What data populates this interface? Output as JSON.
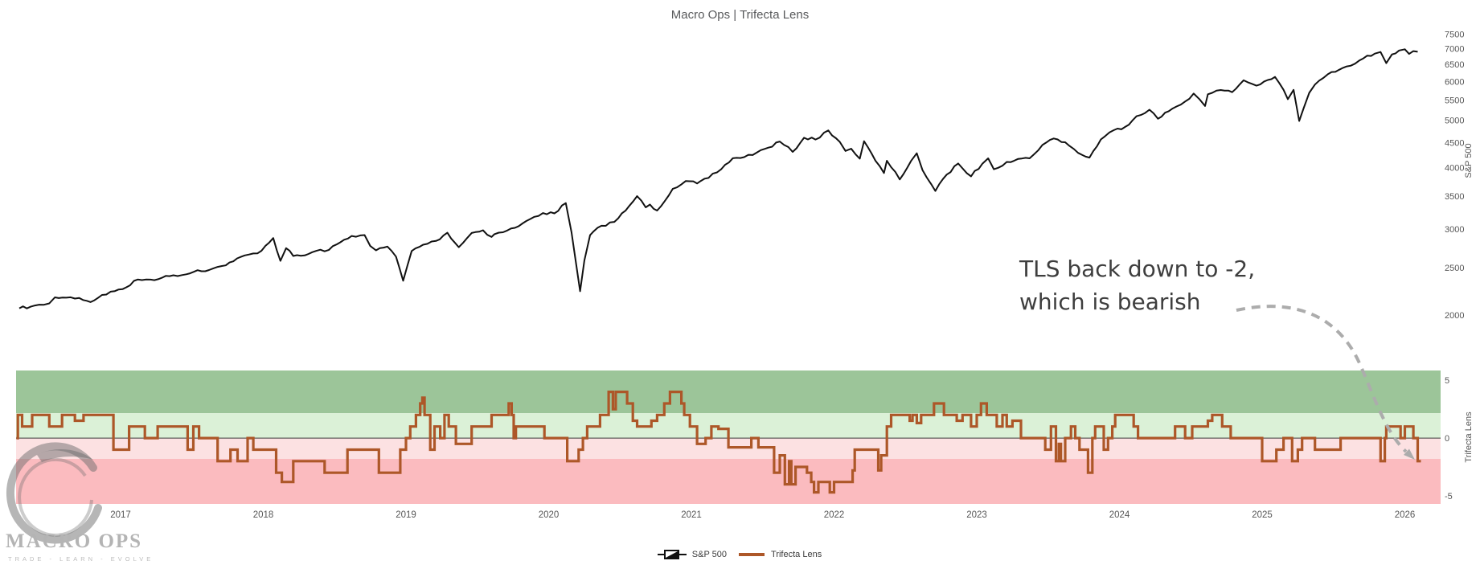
{
  "title": "Macro Ops | Trifecta Lens",
  "annotation": {
    "line1": "TLS back down to -2,",
    "line2": "which is bearish"
  },
  "legend": {
    "items": [
      {
        "label": "S&P 500"
      },
      {
        "label": "Trifecta Lens"
      }
    ]
  },
  "logo": {
    "name": "MACRO OPS",
    "tagline": "TRADE - LEARN - EVOLVE"
  },
  "colors": {
    "sp_line": "#111111",
    "tls_line": "#ad5728",
    "band_strong_bull": "#9cc599",
    "band_bull": "#dbf1d7",
    "band_bear": "#fce1e2",
    "band_strong_bear": "#fbbbbf",
    "zero_line": "#3a3a3a",
    "tick_text": "#565656",
    "arrow": "#acacac",
    "logo_gray": "#6e6e6e"
  },
  "x_axis": {
    "years": [
      2017,
      2018,
      2019,
      2020,
      2021,
      2022,
      2023,
      2024,
      2025,
      2026
    ],
    "range": [
      2016.27,
      2026.25
    ]
  },
  "chart_data": [
    {
      "type": "line",
      "name": "S&P 500",
      "ylabel": "S&P 500",
      "yscale": "log",
      "ylim": [
        1766,
        7916
      ],
      "yticks": [
        7500,
        7000,
        6500,
        6000,
        5500,
        5000,
        4500,
        4000,
        3500,
        3000,
        2500,
        2000
      ],
      "points": [
        [
          2016.29,
          2065
        ],
        [
          2016.37,
          2081
        ],
        [
          2016.46,
          2099
        ],
        [
          2016.5,
          2113
        ],
        [
          2016.54,
          2174
        ],
        [
          2016.62,
          2171
        ],
        [
          2016.71,
          2168
        ],
        [
          2016.79,
          2126
        ],
        [
          2016.87,
          2199
        ],
        [
          2016.96,
          2239
        ],
        [
          2017.04,
          2279
        ],
        [
          2017.12,
          2364
        ],
        [
          2017.21,
          2363
        ],
        [
          2017.29,
          2384
        ],
        [
          2017.37,
          2412
        ],
        [
          2017.46,
          2423
        ],
        [
          2017.54,
          2470
        ],
        [
          2017.62,
          2472
        ],
        [
          2017.71,
          2519
        ],
        [
          2017.79,
          2575
        ],
        [
          2017.87,
          2648
        ],
        [
          2017.96,
          2674
        ],
        [
          2018.07,
          2873
        ],
        [
          2018.12,
          2581
        ],
        [
          2018.16,
          2740
        ],
        [
          2018.21,
          2641
        ],
        [
          2018.29,
          2648
        ],
        [
          2018.37,
          2705
        ],
        [
          2018.46,
          2718
        ],
        [
          2018.54,
          2816
        ],
        [
          2018.62,
          2902
        ],
        [
          2018.71,
          2914
        ],
        [
          2018.75,
          2768
        ],
        [
          2018.79,
          2712
        ],
        [
          2018.87,
          2760
        ],
        [
          2018.93,
          2633
        ],
        [
          2018.98,
          2351
        ],
        [
          2019.04,
          2704
        ],
        [
          2019.12,
          2784
        ],
        [
          2019.21,
          2834
        ],
        [
          2019.29,
          2946
        ],
        [
          2019.37,
          2752
        ],
        [
          2019.46,
          2942
        ],
        [
          2019.54,
          2980
        ],
        [
          2019.6,
          2888
        ],
        [
          2019.62,
          2926
        ],
        [
          2019.71,
          2977
        ],
        [
          2019.79,
          3038
        ],
        [
          2019.87,
          3141
        ],
        [
          2019.96,
          3231
        ],
        [
          2020.04,
          3226
        ],
        [
          2020.12,
          3386
        ],
        [
          2020.16,
          2954
        ],
        [
          2020.22,
          2237
        ],
        [
          2020.25,
          2585
        ],
        [
          2020.29,
          2912
        ],
        [
          2020.37,
          3044
        ],
        [
          2020.46,
          3100
        ],
        [
          2020.54,
          3271
        ],
        [
          2020.62,
          3500
        ],
        [
          2020.68,
          3319
        ],
        [
          2020.71,
          3363
        ],
        [
          2020.76,
          3270
        ],
        [
          2020.87,
          3622
        ],
        [
          2020.96,
          3756
        ],
        [
          2021.04,
          3714
        ],
        [
          2021.12,
          3811
        ],
        [
          2021.21,
          3973
        ],
        [
          2021.29,
          4181
        ],
        [
          2021.37,
          4204
        ],
        [
          2021.46,
          4298
        ],
        [
          2021.54,
          4395
        ],
        [
          2021.62,
          4523
        ],
        [
          2021.71,
          4308
        ],
        [
          2021.79,
          4605
        ],
        [
          2021.87,
          4567
        ],
        [
          2021.96,
          4766
        ],
        [
          2022.04,
          4516
        ],
        [
          2022.08,
          4327
        ],
        [
          2022.12,
          4374
        ],
        [
          2022.18,
          4173
        ],
        [
          2022.21,
          4530
        ],
        [
          2022.29,
          4132
        ],
        [
          2022.35,
          3900
        ],
        [
          2022.37,
          4132
        ],
        [
          2022.46,
          3785
        ],
        [
          2022.54,
          4130
        ],
        [
          2022.58,
          4280
        ],
        [
          2022.62,
          3955
        ],
        [
          2022.71,
          3586
        ],
        [
          2022.79,
          3872
        ],
        [
          2022.87,
          4080
        ],
        [
          2022.96,
          3840
        ],
        [
          2023.04,
          4077
        ],
        [
          2023.08,
          4180
        ],
        [
          2023.12,
          3970
        ],
        [
          2023.21,
          4109
        ],
        [
          2023.29,
          4169
        ],
        [
          2023.37,
          4180
        ],
        [
          2023.46,
          4450
        ],
        [
          2023.54,
          4589
        ],
        [
          2023.62,
          4508
        ],
        [
          2023.71,
          4288
        ],
        [
          2023.79,
          4194
        ],
        [
          2023.87,
          4568
        ],
        [
          2023.96,
          4770
        ],
        [
          2024.04,
          4846
        ],
        [
          2024.12,
          5096
        ],
        [
          2024.21,
          5254
        ],
        [
          2024.27,
          5036
        ],
        [
          2024.37,
          5278
        ],
        [
          2024.46,
          5460
        ],
        [
          2024.52,
          5667
        ],
        [
          2024.56,
          5522
        ],
        [
          2024.6,
          5346
        ],
        [
          2024.62,
          5648
        ],
        [
          2024.71,
          5762
        ],
        [
          2024.79,
          5705
        ],
        [
          2024.87,
          6032
        ],
        [
          2024.96,
          5882
        ],
        [
          2025.04,
          6041
        ],
        [
          2025.09,
          6130
        ],
        [
          2025.12,
          5955
        ],
        [
          2025.18,
          5521
        ],
        [
          2025.22,
          5767
        ],
        [
          2025.26,
          4983
        ],
        [
          2025.29,
          5283
        ],
        [
          2025.33,
          5687
        ],
        [
          2025.37,
          5912
        ],
        [
          2025.46,
          6205
        ],
        [
          2025.54,
          6339
        ],
        [
          2025.62,
          6460
        ],
        [
          2025.71,
          6688
        ],
        [
          2025.79,
          6840
        ],
        [
          2025.83,
          6890
        ],
        [
          2025.87,
          6538
        ],
        [
          2025.91,
          6812
        ],
        [
          2025.96,
          6940
        ],
        [
          2026.0,
          6980
        ],
        [
          2026.03,
          6830
        ],
        [
          2026.06,
          6920
        ],
        [
          2026.09,
          6900
        ]
      ]
    },
    {
      "type": "step-line",
      "name": "Trifecta Lens",
      "ylabel": "Trifecta Lens",
      "ylim": [
        -5.7,
        5.85
      ],
      "yticks": [
        5,
        0,
        -5
      ],
      "bands": [
        {
          "from": 2.15,
          "to": 5.85,
          "label": "strong-bullish"
        },
        {
          "from": 0,
          "to": 2.15,
          "label": "bullish"
        },
        {
          "from": -1.8,
          "to": 0,
          "label": "bearish"
        },
        {
          "from": -5.7,
          "to": -1.8,
          "label": "strong-bearish"
        }
      ],
      "steps": [
        [
          2016.27,
          0
        ],
        [
          2016.28,
          2
        ],
        [
          2016.31,
          1
        ],
        [
          2016.38,
          2
        ],
        [
          2016.5,
          1
        ],
        [
          2016.59,
          2
        ],
        [
          2016.68,
          1.5
        ],
        [
          2016.74,
          2
        ],
        [
          2016.95,
          -1
        ],
        [
          2017.06,
          1
        ],
        [
          2017.17,
          0
        ],
        [
          2017.26,
          1
        ],
        [
          2017.47,
          -1
        ],
        [
          2017.51,
          1
        ],
        [
          2017.55,
          0
        ],
        [
          2017.68,
          -2
        ],
        [
          2017.77,
          -1
        ],
        [
          2017.82,
          -2
        ],
        [
          2017.89,
          0
        ],
        [
          2017.93,
          -1
        ],
        [
          2018.09,
          -3
        ],
        [
          2018.13,
          -3.8
        ],
        [
          2018.21,
          -2
        ],
        [
          2018.43,
          -3
        ],
        [
          2018.59,
          -1
        ],
        [
          2018.81,
          -3
        ],
        [
          2018.96,
          -1
        ],
        [
          2019.0,
          0
        ],
        [
          2019.03,
          1
        ],
        [
          2019.07,
          2
        ],
        [
          2019.1,
          3
        ],
        [
          2019.115,
          3.5
        ],
        [
          2019.13,
          2
        ],
        [
          2019.17,
          -1
        ],
        [
          2019.2,
          1
        ],
        [
          2019.24,
          0
        ],
        [
          2019.27,
          2
        ],
        [
          2019.3,
          1
        ],
        [
          2019.35,
          -0.5
        ],
        [
          2019.46,
          1
        ],
        [
          2019.6,
          2
        ],
        [
          2019.72,
          3
        ],
        [
          2019.74,
          2
        ],
        [
          2019.755,
          0
        ],
        [
          2019.77,
          1
        ],
        [
          2019.97,
          0
        ],
        [
          2020.13,
          -2
        ],
        [
          2020.21,
          -1
        ],
        [
          2020.24,
          0
        ],
        [
          2020.27,
          1
        ],
        [
          2020.36,
          2
        ],
        [
          2020.42,
          4
        ],
        [
          2020.45,
          2.5
        ],
        [
          2020.47,
          4
        ],
        [
          2020.55,
          3
        ],
        [
          2020.59,
          1.5
        ],
        [
          2020.62,
          1
        ],
        [
          2020.72,
          1.5
        ],
        [
          2020.76,
          2
        ],
        [
          2020.81,
          3
        ],
        [
          2020.85,
          4
        ],
        [
          2020.93,
          3
        ],
        [
          2020.95,
          2
        ],
        [
          2020.99,
          1
        ],
        [
          2021.04,
          -0.5
        ],
        [
          2021.1,
          0
        ],
        [
          2021.14,
          1
        ],
        [
          2021.19,
          0.8
        ],
        [
          2021.26,
          -0.8
        ],
        [
          2021.42,
          0
        ],
        [
          2021.47,
          -0.8
        ],
        [
          2021.58,
          -3
        ],
        [
          2021.62,
          -1.5
        ],
        [
          2021.655,
          -4
        ],
        [
          2021.685,
          -2
        ],
        [
          2021.7,
          -4
        ],
        [
          2021.73,
          -2.5
        ],
        [
          2021.81,
          -3
        ],
        [
          2021.84,
          -3.8
        ],
        [
          2021.86,
          -4.7
        ],
        [
          2021.89,
          -3.8
        ],
        [
          2021.97,
          -4.7
        ],
        [
          2022.0,
          -3.8
        ],
        [
          2022.13,
          -2.8
        ],
        [
          2022.145,
          -1
        ],
        [
          2022.31,
          -2.8
        ],
        [
          2022.33,
          -1.5
        ],
        [
          2022.37,
          1
        ],
        [
          2022.4,
          2
        ],
        [
          2022.53,
          1.5
        ],
        [
          2022.55,
          2
        ],
        [
          2022.58,
          1.3
        ],
        [
          2022.61,
          2
        ],
        [
          2022.7,
          3
        ],
        [
          2022.77,
          2
        ],
        [
          2022.86,
          1.5
        ],
        [
          2022.9,
          2
        ],
        [
          2022.96,
          1
        ],
        [
          2023.0,
          2
        ],
        [
          2023.03,
          3
        ],
        [
          2023.07,
          2
        ],
        [
          2023.14,
          1
        ],
        [
          2023.18,
          2
        ],
        [
          2023.21,
          1
        ],
        [
          2023.25,
          1.5
        ],
        [
          2023.31,
          0
        ],
        [
          2023.48,
          -1
        ],
        [
          2023.52,
          1
        ],
        [
          2023.555,
          -2
        ],
        [
          2023.575,
          -0.5
        ],
        [
          2023.59,
          -2
        ],
        [
          2023.62,
          0
        ],
        [
          2023.66,
          1
        ],
        [
          2023.69,
          0
        ],
        [
          2023.72,
          -1
        ],
        [
          2023.78,
          -3
        ],
        [
          2023.81,
          0
        ],
        [
          2023.83,
          1
        ],
        [
          2023.89,
          -1
        ],
        [
          2023.92,
          0
        ],
        [
          2023.95,
          1
        ],
        [
          2023.97,
          2
        ],
        [
          2024.1,
          1
        ],
        [
          2024.13,
          0
        ],
        [
          2024.39,
          1
        ],
        [
          2024.46,
          0
        ],
        [
          2024.51,
          1
        ],
        [
          2024.62,
          1.5
        ],
        [
          2024.65,
          2
        ],
        [
          2024.72,
          1
        ],
        [
          2024.78,
          0
        ],
        [
          2025.0,
          -2
        ],
        [
          2025.1,
          -1
        ],
        [
          2025.15,
          0
        ],
        [
          2025.21,
          -2
        ],
        [
          2025.25,
          -1
        ],
        [
          2025.28,
          0
        ],
        [
          2025.37,
          -1
        ],
        [
          2025.55,
          0
        ],
        [
          2025.83,
          -2
        ],
        [
          2025.86,
          0
        ],
        [
          2025.87,
          1
        ],
        [
          2025.97,
          0
        ],
        [
          2026.0,
          1
        ],
        [
          2026.06,
          0
        ],
        [
          2026.09,
          -2
        ]
      ]
    }
  ]
}
